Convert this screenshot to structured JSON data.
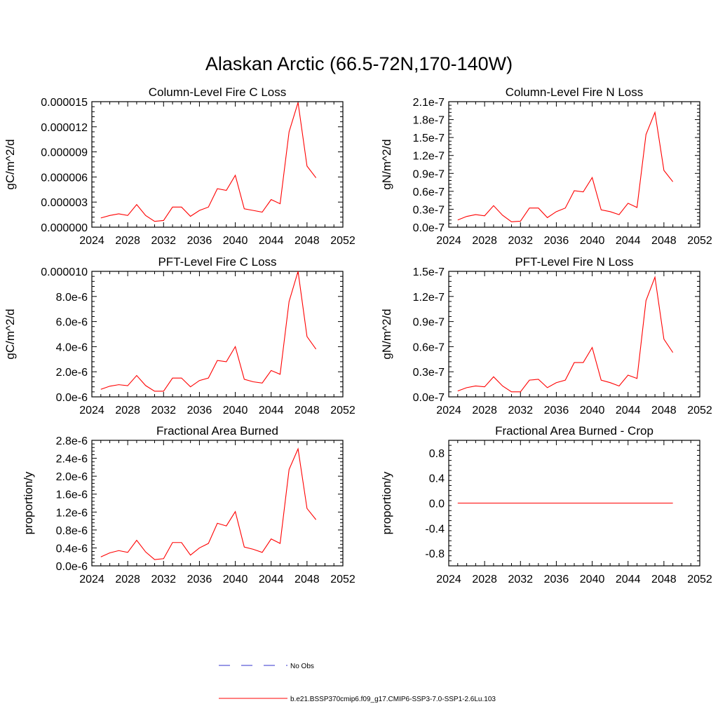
{
  "figure": {
    "title": "Alaskan Arctic (66.5-72N,170-140W)"
  },
  "legend": {
    "entries": [
      {
        "label": "No Obs",
        "color": "#3333cc",
        "style": "dashed"
      },
      {
        "label": "b.e21.BSSP370cmip6.f09_g17.CMIP6-SSP3-7.0-SSP1-2.6Lu.103",
        "color": "#ff0000",
        "style": "solid"
      }
    ]
  },
  "chart_data": [
    {
      "type": "line",
      "title": "Column-Level Fire C Loss",
      "xlabel": "",
      "ylabel": "gC/m^2/d",
      "xlim": [
        2024,
        2052
      ],
      "ylim": [
        0,
        1.5e-05
      ],
      "xticks": [
        2024,
        2028,
        2032,
        2036,
        2040,
        2044,
        2048,
        2052
      ],
      "xtick_labels": [
        "2024",
        "2028",
        "2032",
        "2036",
        "2040",
        "2044",
        "2048",
        "2052"
      ],
      "yticks": [
        0,
        3e-06,
        6e-06,
        9e-06,
        1.2e-05,
        1.5e-05
      ],
      "ytick_labels": [
        "0.000000",
        "0.000003",
        "0.000006",
        "0.000009",
        "0.000012",
        "0.000015"
      ],
      "series": [
        {
          "name": "b.e21.BSSP370cmip6.f09_g17.CMIP6-SSP3-7.0-SSP1-2.6Lu.103",
          "color": "#ff0000",
          "x": [
            2025,
            2026,
            2027,
            2028,
            2029,
            2030,
            2031,
            2032,
            2033,
            2034,
            2035,
            2036,
            2037,
            2038,
            2039,
            2040,
            2041,
            2042,
            2043,
            2044,
            2045,
            2046,
            2047,
            2048,
            2049
          ],
          "y": [
            1.1e-06,
            1.4e-06,
            1.6e-06,
            1.4e-06,
            2.7e-06,
            1.4e-06,
            7e-07,
            8e-07,
            2.4e-06,
            2.4e-06,
            1.3e-06,
            2e-06,
            2.4e-06,
            4.6e-06,
            4.4e-06,
            6.2e-06,
            2.2e-06,
            2e-06,
            1.8e-06,
            3.3e-06,
            2.8e-06,
            1.14e-05,
            1.49e-05,
            7.3e-06,
            5.9e-06
          ]
        }
      ]
    },
    {
      "type": "line",
      "title": "Column-Level Fire N Loss",
      "xlabel": "",
      "ylabel": "gN/m^2/d",
      "xlim": [
        2024,
        2052
      ],
      "ylim": [
        0,
        2.1e-07
      ],
      "xticks": [
        2024,
        2028,
        2032,
        2036,
        2040,
        2044,
        2048,
        2052
      ],
      "xtick_labels": [
        "2024",
        "2028",
        "2032",
        "2036",
        "2040",
        "2044",
        "2048",
        "2052"
      ],
      "yticks": [
        0,
        3e-08,
        6e-08,
        9e-08,
        1.2e-07,
        1.5e-07,
        1.8e-07,
        2.1e-07
      ],
      "ytick_labels": [
        "0.0e-7",
        "0.3e-7",
        "0.6e-7",
        "0.9e-7",
        "1.2e-7",
        "1.5e-7",
        "1.8e-7",
        "2.1e-7"
      ],
      "series": [
        {
          "name": "b.e21.BSSP370cmip6.f09_g17.CMIP6-SSP3-7.0-SSP1-2.6Lu.103",
          "color": "#ff0000",
          "x": [
            2025,
            2026,
            2027,
            2028,
            2029,
            2030,
            2031,
            2032,
            2033,
            2034,
            2035,
            2036,
            2037,
            2038,
            2039,
            2040,
            2041,
            2042,
            2043,
            2044,
            2045,
            2046,
            2047,
            2048,
            2049
          ],
          "y": [
            1.2e-08,
            1.8e-08,
            2.1e-08,
            1.9e-08,
            3.6e-08,
            2e-08,
            9e-09,
            1e-08,
            3.2e-08,
            3.2e-08,
            1.6e-08,
            2.6e-08,
            3.2e-08,
            6.1e-08,
            5.9e-08,
            8.3e-08,
            2.9e-08,
            2.6e-08,
            2.1e-08,
            4e-08,
            3.3e-08,
            1.55e-07,
            1.92e-07,
            9.5e-08,
            7.6e-08
          ]
        }
      ]
    },
    {
      "type": "line",
      "title": "PFT-Level Fire C Loss",
      "xlabel": "",
      "ylabel": "gC/m^2/d",
      "xlim": [
        2024,
        2052
      ],
      "ylim": [
        0,
        1e-05
      ],
      "xticks": [
        2024,
        2028,
        2032,
        2036,
        2040,
        2044,
        2048,
        2052
      ],
      "xtick_labels": [
        "2024",
        "2028",
        "2032",
        "2036",
        "2040",
        "2044",
        "2048",
        "2052"
      ],
      "yticks": [
        0,
        2e-06,
        4e-06,
        6e-06,
        8e-06,
        1e-05
      ],
      "ytick_labels": [
        "0.0e-6",
        "2.0e-6",
        "4.0e-6",
        "6.0e-6",
        "8.0e-6",
        "0.000010"
      ],
      "series": [
        {
          "name": "b.e21.BSSP370cmip6.f09_g17.CMIP6-SSP3-7.0-SSP1-2.6Lu.103",
          "color": "#ff0000",
          "x": [
            2025,
            2026,
            2027,
            2028,
            2029,
            2030,
            2031,
            2032,
            2033,
            2034,
            2035,
            2036,
            2037,
            2038,
            2039,
            2040,
            2041,
            2042,
            2043,
            2044,
            2045,
            2046,
            2047,
            2048,
            2049
          ],
          "y": [
            6e-07,
            8.5e-07,
            9.7e-07,
            8.9e-07,
            1.7e-06,
            9e-07,
            4.5e-07,
            4.5e-07,
            1.5e-06,
            1.5e-06,
            8e-07,
            1.3e-06,
            1.5e-06,
            2.9e-06,
            2.8e-06,
            4e-06,
            1.4e-06,
            1.2e-06,
            1.1e-06,
            2.1e-06,
            1.8e-06,
            7.6e-06,
            1e-05,
            4.8e-06,
            3.8e-06
          ]
        }
      ]
    },
    {
      "type": "line",
      "title": "PFT-Level Fire N Loss",
      "xlabel": "",
      "ylabel": "gN/m^2/d",
      "xlim": [
        2024,
        2052
      ],
      "ylim": [
        0,
        1.5e-07
      ],
      "xticks": [
        2024,
        2028,
        2032,
        2036,
        2040,
        2044,
        2048,
        2052
      ],
      "xtick_labels": [
        "2024",
        "2028",
        "2032",
        "2036",
        "2040",
        "2044",
        "2048",
        "2052"
      ],
      "yticks": [
        0,
        3e-08,
        6e-08,
        9e-08,
        1.2e-07,
        1.5e-07
      ],
      "ytick_labels": [
        "0.0e-7",
        "0.3e-7",
        "0.6e-7",
        "0.9e-7",
        "1.2e-7",
        "1.5e-7"
      ],
      "series": [
        {
          "name": "b.e21.BSSP370cmip6.f09_g17.CMIP6-SSP3-7.0-SSP1-2.6Lu.103",
          "color": "#ff0000",
          "x": [
            2025,
            2026,
            2027,
            2028,
            2029,
            2030,
            2031,
            2032,
            2033,
            2034,
            2035,
            2036,
            2037,
            2038,
            2039,
            2040,
            2041,
            2042,
            2043,
            2044,
            2045,
            2046,
            2047,
            2048,
            2049
          ],
          "y": [
            7e-09,
            1.1e-08,
            1.3e-08,
            1.2e-08,
            2.4e-08,
            1.3e-08,
            6e-09,
            6e-09,
            2e-08,
            2.1e-08,
            1.1e-08,
            1.7e-08,
            2e-08,
            4.1e-08,
            4.1e-08,
            5.9e-08,
            2e-08,
            1.7e-08,
            1.3e-08,
            2.6e-08,
            2.2e-08,
            1.15e-07,
            1.43e-07,
            6.9e-08,
            5.3e-08
          ]
        }
      ]
    },
    {
      "type": "line",
      "title": "Fractional Area Burned",
      "xlabel": "",
      "ylabel": "proportion/y",
      "xlim": [
        2024,
        2052
      ],
      "ylim": [
        0,
        2.8e-06
      ],
      "xticks": [
        2024,
        2028,
        2032,
        2036,
        2040,
        2044,
        2048,
        2052
      ],
      "xtick_labels": [
        "2024",
        "2028",
        "2032",
        "2036",
        "2040",
        "2044",
        "2048",
        "2052"
      ],
      "yticks": [
        0,
        4e-07,
        8e-07,
        1.2e-06,
        1.6e-06,
        2e-06,
        2.4e-06,
        2.8e-06
      ],
      "ytick_labels": [
        "0.0e-6",
        "0.4e-6",
        "0.8e-6",
        "1.2e-6",
        "1.6e-6",
        "2.0e-6",
        "2.4e-6",
        "2.8e-6"
      ],
      "series": [
        {
          "name": "b.e21.BSSP370cmip6.f09_g17.CMIP6-SSP3-7.0-SSP1-2.6Lu.103",
          "color": "#ff0000",
          "x": [
            2025,
            2026,
            2027,
            2028,
            2029,
            2030,
            2031,
            2032,
            2033,
            2034,
            2035,
            2036,
            2037,
            2038,
            2039,
            2040,
            2041,
            2042,
            2043,
            2044,
            2045,
            2046,
            2047,
            2048,
            2049
          ],
          "y": [
            2e-07,
            2.9e-07,
            3.4e-07,
            3e-07,
            5.7e-07,
            3.1e-07,
            1.4e-07,
            1.6e-07,
            5.2e-07,
            5.2e-07,
            2.4e-07,
            4e-07,
            5e-07,
            9.5e-07,
            8.9e-07,
            1.21e-06,
            4.2e-07,
            3.7e-07,
            3e-07,
            6e-07,
            5e-07,
            2.15e-06,
            2.61e-06,
            1.28e-06,
            1.03e-06
          ]
        }
      ]
    },
    {
      "type": "line",
      "title": "Fractional Area Burned - Crop",
      "xlabel": "",
      "ylabel": "proportion/y",
      "xlim": [
        2024,
        2052
      ],
      "ylim": [
        -1,
        1
      ],
      "xticks": [
        2024,
        2028,
        2032,
        2036,
        2040,
        2044,
        2048,
        2052
      ],
      "xtick_labels": [
        "2024",
        "2028",
        "2032",
        "2036",
        "2040",
        "2044",
        "2048",
        "2052"
      ],
      "yticks": [
        -0.8,
        -0.4,
        0,
        0.4,
        0.8
      ],
      "ytick_labels": [
        "-0.8",
        "-0.4",
        "0.0",
        "0.4",
        "0.8"
      ],
      "series": [
        {
          "name": "b.e21.BSSP370cmip6.f09_g17.CMIP6-SSP3-7.0-SSP1-2.6Lu.103",
          "color": "#ff0000",
          "x": [
            2025,
            2049
          ],
          "y": [
            0,
            0
          ]
        }
      ]
    }
  ]
}
